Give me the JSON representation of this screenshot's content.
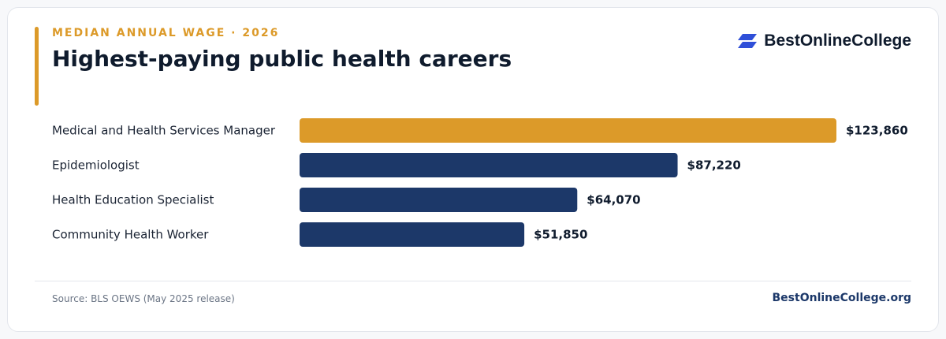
{
  "header": {
    "eyebrow": "MEDIAN ANNUAL WAGE · 2026",
    "title": "Highest-paying public health careers"
  },
  "brand": {
    "name": "BestOnlineCollege",
    "icon": "stacked-parallelogram-logo-icon"
  },
  "footer": {
    "source": "Source: BLS OEWS (May 2025 release)",
    "site": "BestOnlineCollege.org"
  },
  "colors": {
    "accent": "#dc9a29",
    "bar": "#1c3869",
    "logo": "#2f4fd8"
  },
  "chart_data": {
    "type": "bar",
    "orientation": "horizontal",
    "categories": [
      "Medical and Health Services Manager",
      "Epidemiologist",
      "Health Education Specialist",
      "Community Health Worker"
    ],
    "values": [
      123860,
      87220,
      64070,
      51850
    ],
    "value_labels": [
      "$123,860",
      "$87,220",
      "$64,070",
      "$51,850"
    ],
    "highlight_index": 0,
    "xlim": [
      0,
      123860
    ],
    "grid": false,
    "legend": "none"
  }
}
